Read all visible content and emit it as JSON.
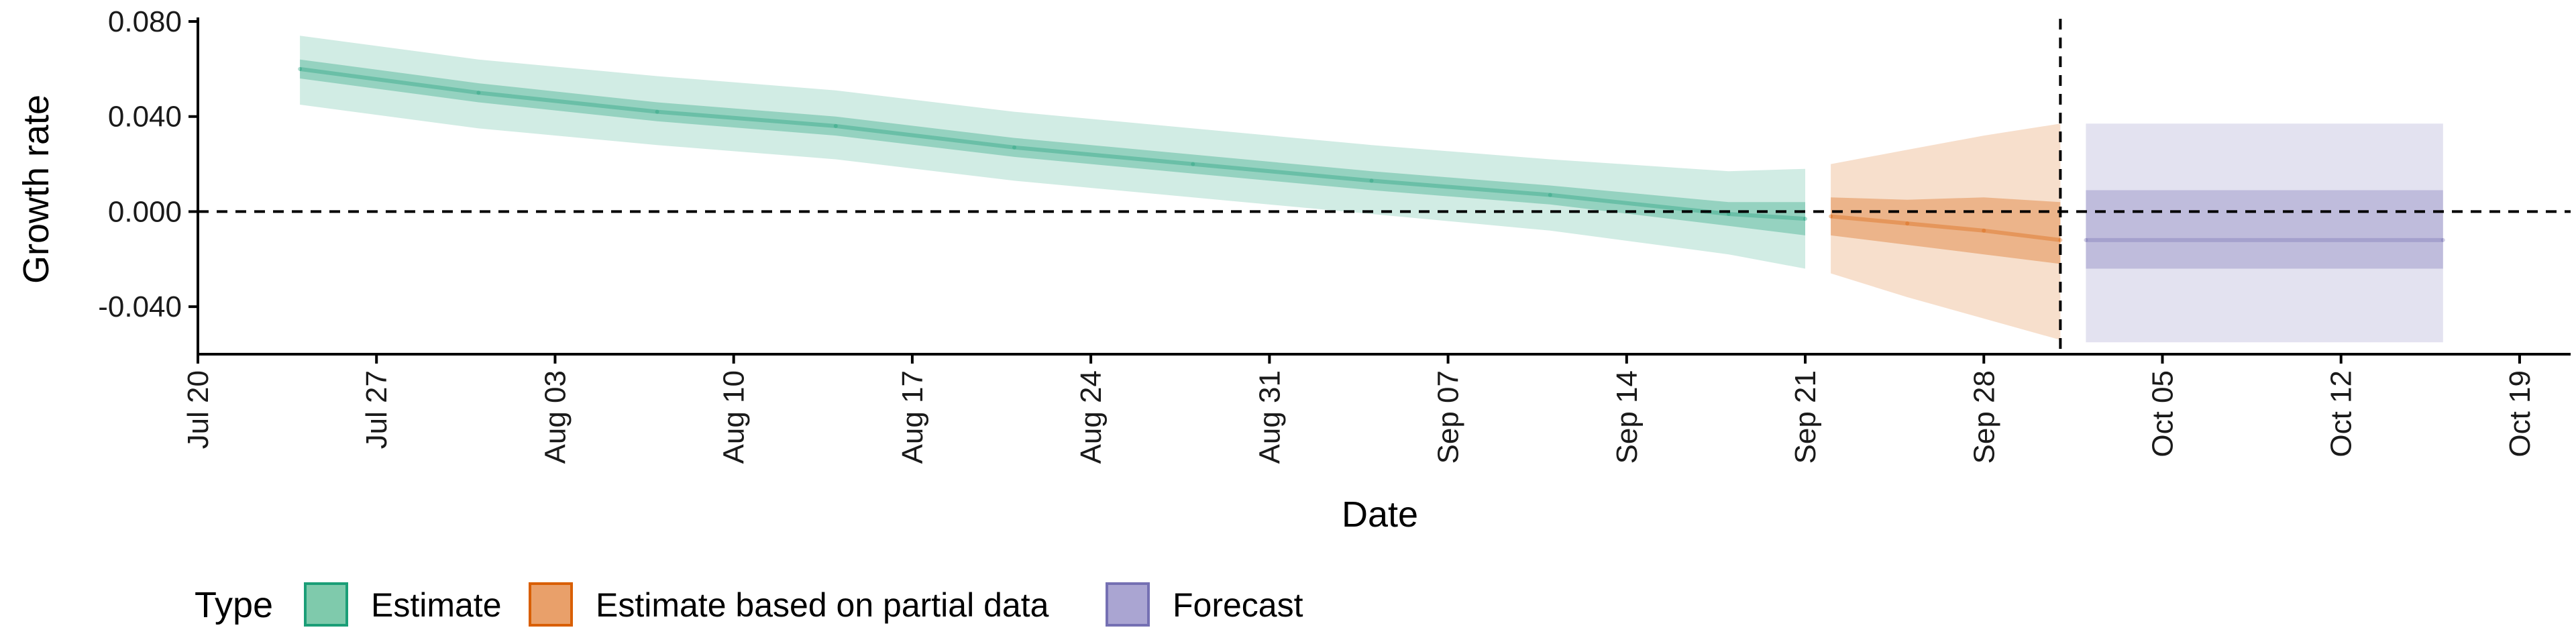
{
  "chart_data": {
    "type": "area",
    "xlabel": "Date",
    "ylabel": "Growth rate",
    "x_ticks": [
      "2020-07-20",
      "2020-07-27",
      "2020-08-03",
      "2020-08-10",
      "2020-08-17",
      "2020-08-24",
      "2020-08-31",
      "2020-09-07",
      "2020-09-14",
      "2020-09-21",
      "2020-09-28",
      "2020-10-05",
      "2020-10-12",
      "2020-10-19"
    ],
    "x_tick_labels": [
      "Jul 20",
      "Jul 27",
      "Aug 03",
      "Aug 10",
      "Aug 17",
      "Aug 24",
      "Aug 31",
      "Sep 07",
      "Sep 14",
      "Sep 21",
      "Sep 28",
      "Oct 05",
      "Oct 12",
      "Oct 19"
    ],
    "xlim": [
      "2020-07-20",
      "2020-10-21"
    ],
    "ylim": [
      -0.06,
      0.08
    ],
    "y_ticks": [
      -0.04,
      0,
      0.04,
      0.08
    ],
    "y_tick_labels": [
      "-0.040",
      "0.000",
      "0.040",
      "0.080"
    ],
    "reference_lines": {
      "hline_y": 0,
      "vline_x": "2020-10-01"
    },
    "grid": false,
    "legend": {
      "title": "Type",
      "position": "bottom-left",
      "entries": [
        {
          "label": "Estimate",
          "fill": "#7fcaac",
          "stroke": "#1b9e77"
        },
        {
          "label": "Estimate based on partial data",
          "fill": "#e9a06a",
          "stroke": "#d95f02"
        },
        {
          "label": "Forecast",
          "fill": "#aaa5d2",
          "stroke": "#7570b3"
        }
      ]
    },
    "series": [
      {
        "name": "Estimate",
        "color": "#1b9e77",
        "points": [
          {
            "x": "2020-07-24",
            "median": 0.06,
            "inner": [
              0.056,
              0.064
            ],
            "outer": [
              0.045,
              0.074
            ]
          },
          {
            "x": "2020-07-31",
            "median": 0.05,
            "inner": [
              0.046,
              0.054
            ],
            "outer": [
              0.035,
              0.064
            ]
          },
          {
            "x": "2020-08-07",
            "median": 0.042,
            "inner": [
              0.038,
              0.046
            ],
            "outer": [
              0.028,
              0.057
            ]
          },
          {
            "x": "2020-08-14",
            "median": 0.036,
            "inner": [
              0.032,
              0.04
            ],
            "outer": [
              0.022,
              0.051
            ]
          },
          {
            "x": "2020-08-21",
            "median": 0.027,
            "inner": [
              0.023,
              0.031
            ],
            "outer": [
              0.013,
              0.042
            ]
          },
          {
            "x": "2020-08-28",
            "median": 0.02,
            "inner": [
              0.016,
              0.024
            ],
            "outer": [
              0.006,
              0.035
            ]
          },
          {
            "x": "2020-09-04",
            "median": 0.013,
            "inner": [
              0.009,
              0.017
            ],
            "outer": [
              -0.001,
              0.028
            ]
          },
          {
            "x": "2020-09-11",
            "median": 0.007,
            "inner": [
              0.003,
              0.011
            ],
            "outer": [
              -0.008,
              0.022
            ]
          },
          {
            "x": "2020-09-18",
            "median": -0.001,
            "inner": [
              -0.006,
              0.004
            ],
            "outer": [
              -0.018,
              0.017
            ]
          },
          {
            "x": "2020-09-21",
            "median": -0.003,
            "inner": [
              -0.01,
              0.004
            ],
            "outer": [
              -0.024,
              0.018
            ]
          }
        ]
      },
      {
        "name": "Estimate based on partial data",
        "color": "#d95f02",
        "points": [
          {
            "x": "2020-09-22",
            "median": -0.002,
            "inner": [
              -0.01,
              0.006
            ],
            "outer": [
              -0.026,
              0.02
            ]
          },
          {
            "x": "2020-09-25",
            "median": -0.005,
            "inner": [
              -0.014,
              0.005
            ],
            "outer": [
              -0.036,
              0.026
            ]
          },
          {
            "x": "2020-09-28",
            "median": -0.008,
            "inner": [
              -0.018,
              0.006
            ],
            "outer": [
              -0.045,
              0.032
            ]
          },
          {
            "x": "2020-10-01",
            "median": -0.012,
            "inner": [
              -0.022,
              0.004
            ],
            "outer": [
              -0.054,
              0.037
            ]
          }
        ]
      },
      {
        "name": "Forecast",
        "color": "#7570b3",
        "points": [
          {
            "x": "2020-10-02",
            "median": -0.012,
            "inner": [
              -0.024,
              0.009
            ],
            "outer": [
              -0.055,
              0.037
            ]
          },
          {
            "x": "2020-10-16",
            "median": -0.012,
            "inner": [
              -0.024,
              0.009
            ],
            "outer": [
              -0.055,
              0.037
            ]
          }
        ]
      }
    ]
  }
}
